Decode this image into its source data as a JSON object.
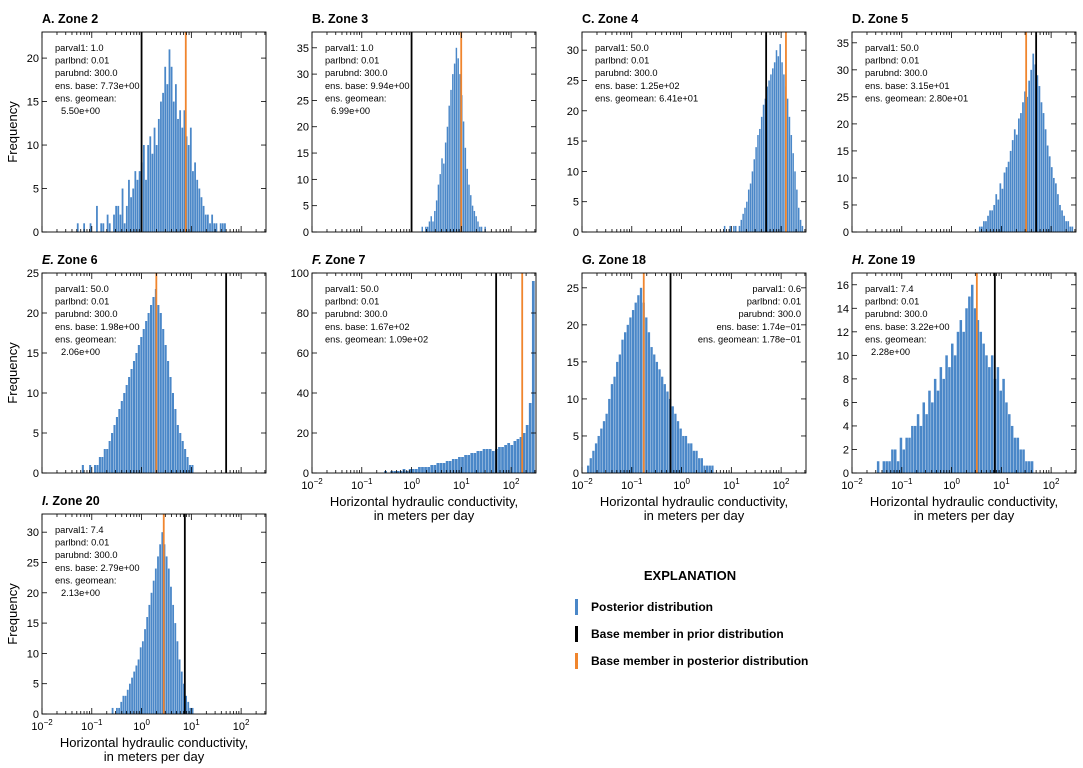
{
  "colors": {
    "posterior": "#4a87c8",
    "prior": "#000000",
    "post_base": "#f0852d"
  },
  "shared": {
    "ylabel": "Frequency",
    "xlabel_line1": "Horizontal hydraulic conductivity,",
    "xlabel_line2": "in meters per day",
    "xlim": [
      0.01,
      316
    ],
    "xticks": [
      {
        "v": 0.01,
        "b": "10",
        "e": "−2"
      },
      {
        "v": 0.1,
        "b": "10",
        "e": "−1"
      },
      {
        "v": 1,
        "b": "10",
        "e": "0"
      },
      {
        "v": 10,
        "b": "10",
        "e": "1"
      },
      {
        "v": 100,
        "b": "10",
        "e": "2"
      }
    ]
  },
  "legend": {
    "title": "EXPLANATION",
    "items": [
      {
        "label": "Posterior distribution",
        "color": "#4a87c8"
      },
      {
        "label": "Base member in prior distribution",
        "color": "#000000"
      },
      {
        "label": "Base member in posterior distribution",
        "color": "#f0852d"
      }
    ]
  },
  "chart_data": [
    {
      "type": "bar",
      "letter": "A.",
      "name": "Zone 2",
      "ylim": [
        0,
        23
      ],
      "yticks": [
        0,
        5,
        10,
        15,
        20
      ],
      "prior_base": 1.0,
      "post_base": 7.73,
      "ann_align": "left",
      "annotation": [
        "parval1: 1.0",
        "parlbnd: 0.01",
        "parubnd: 300.0",
        "ens. base: 7.73e+00",
        "ens. geomean:",
        "5.50e+00"
      ],
      "bins": {
        "min_log": -1.3,
        "max_log": 1.7,
        "counts": [
          1,
          0,
          0,
          1,
          0,
          0,
          1,
          0,
          0,
          3,
          0,
          1,
          1,
          0,
          2,
          1,
          0,
          2,
          3,
          3,
          2,
          5,
          1,
          3,
          6,
          4,
          5,
          7,
          6,
          7,
          8,
          10,
          6,
          10,
          11,
          9,
          12,
          10,
          13,
          15,
          16,
          19,
          17,
          21,
          19,
          15,
          17,
          13,
          14,
          12,
          14,
          11,
          10,
          12,
          7,
          8,
          6,
          5,
          4,
          3,
          2,
          2,
          1,
          2,
          1,
          1,
          0,
          1,
          1,
          1
        ]
      }
    },
    {
      "type": "bar",
      "letter": "B.",
      "name": "Zone 3",
      "ylim": [
        0,
        38
      ],
      "yticks": [
        0,
        5,
        10,
        15,
        20,
        25,
        30,
        35
      ],
      "prior_base": 1.0,
      "post_base": 9.94,
      "ann_align": "left",
      "annotation": [
        "parval1: 1.0",
        "parlbnd: 0.01",
        "parubnd: 300.0",
        "ens. base: 9.94e+00",
        "ens. geomean:",
        "6.99e+00"
      ],
      "bins": {
        "min_log": 0.2,
        "max_log": 1.5,
        "counts": [
          1,
          0,
          1,
          1,
          2,
          3,
          2,
          4,
          6,
          9,
          11,
          14,
          13,
          17,
          20,
          24,
          27,
          30,
          32,
          35,
          33,
          30,
          26,
          21,
          16,
          12,
          9,
          7,
          5,
          4,
          3,
          2,
          1,
          1,
          0,
          1
        ]
      }
    },
    {
      "type": "bar",
      "letter": "C.",
      "name": "Zone 4",
      "ylim": [
        0,
        33
      ],
      "yticks": [
        0,
        5,
        10,
        15,
        20,
        25,
        30
      ],
      "prior_base": 50.0,
      "post_base": 125,
      "ann_align": "left",
      "annotation": [
        "parval1: 50.0",
        "parlbnd: 0.01",
        "parubnd: 300.0",
        "ens. base: 1.25e+02",
        "ens. geomean: 6.41e+01"
      ],
      "bins": {
        "min_log": 0.85,
        "max_log": 2.45,
        "counts": [
          1,
          0,
          0,
          1,
          0,
          1,
          1,
          0,
          1,
          2,
          3,
          4,
          5,
          7,
          8,
          10,
          12,
          14,
          16,
          17,
          19,
          21,
          22,
          24,
          25,
          26,
          27,
          28,
          30,
          29,
          31,
          28,
          26,
          24,
          22,
          19,
          16,
          13,
          10,
          7,
          4,
          2,
          1
        ]
      }
    },
    {
      "type": "bar",
      "letter": "D.",
      "name": "Zone 5",
      "ylim": [
        0,
        37
      ],
      "yticks": [
        0,
        5,
        10,
        15,
        20,
        25,
        30,
        35
      ],
      "prior_base": 50.0,
      "post_base": 31.5,
      "ann_align": "left",
      "annotation": [
        "parval1: 50.0",
        "parlbnd: 0.01",
        "parubnd: 300.0",
        "ens. base: 3.15e+01",
        "ens. geomean: 2.80e+01"
      ],
      "bins": {
        "min_log": 0.55,
        "max_log": 2.45,
        "counts": [
          1,
          1,
          2,
          2,
          3,
          4,
          4,
          5,
          7,
          6,
          9,
          8,
          11,
          12,
          13,
          15,
          17,
          19,
          18,
          21,
          22,
          24,
          26,
          25,
          28,
          30,
          33,
          31,
          29,
          27,
          24,
          22,
          19,
          16,
          14,
          12,
          10,
          9,
          7,
          5,
          4,
          3,
          2,
          2,
          1,
          1
        ]
      }
    },
    {
      "type": "bar",
      "letter": "E.",
      "name": "Zone 6",
      "ylim": [
        0,
        25
      ],
      "yticks": [
        0,
        5,
        10,
        15,
        20,
        25
      ],
      "prior_base": 50.0,
      "post_base": 1.98,
      "ann_align": "left",
      "annotation": [
        "parval1: 50.0",
        "parlbnd: 0.01",
        "parubnd: 300.0",
        "ens. base: 1.98e+00",
        "ens. geomean:",
        "2.06e+00"
      ],
      "bins": {
        "min_log": -1.2,
        "max_log": 1.05,
        "counts": [
          1,
          0,
          0,
          1,
          0,
          1,
          1,
          2,
          2,
          3,
          3,
          4,
          5,
          6,
          7,
          8,
          9,
          10,
          11,
          12,
          13,
          14,
          15,
          16,
          17,
          18,
          19,
          20,
          21,
          22,
          23,
          21,
          20,
          18,
          16,
          14,
          12,
          10,
          8,
          6,
          5,
          4,
          3,
          2,
          1,
          1
        ]
      }
    },
    {
      "type": "bar",
      "letter": "F.",
      "name": "Zone 7",
      "ylim": [
        0,
        100
      ],
      "yticks": [
        0,
        20,
        40,
        60,
        80,
        100
      ],
      "prior_base": 50.0,
      "post_base": 167,
      "ann_align": "left",
      "annotation": [
        "parval1: 50.0",
        "parlbnd: 0.01",
        "parubnd: 300.0",
        "ens. base: 1.67e+02",
        "ens. geomean: 1.09e+02"
      ],
      "bins": {
        "min_log": -0.55,
        "max_log": 2.48,
        "counts": [
          1,
          0,
          1,
          1,
          1,
          1,
          2,
          1,
          2,
          2,
          2,
          3,
          3,
          3,
          3,
          4,
          4,
          5,
          5,
          5,
          6,
          6,
          7,
          7,
          8,
          8,
          9,
          9,
          10,
          10,
          11,
          11,
          12,
          12,
          12,
          11,
          12,
          13,
          13,
          14,
          15,
          14,
          16,
          17,
          18,
          20,
          24,
          35,
          96
        ]
      }
    },
    {
      "type": "bar",
      "letter": "G.",
      "name": "Zone 18",
      "ylim": [
        0,
        27
      ],
      "yticks": [
        0,
        5,
        10,
        15,
        20,
        25
      ],
      "prior_base": 0.6,
      "post_base": 0.174,
      "ann_align": "right",
      "annotation": [
        "parval1: 0.6",
        "parlbnd: 0.01",
        "parubnd: 300.0",
        "ens. base: 1.74e−01",
        "ens. geomean: 1.78e−01"
      ],
      "bins": {
        "min_log": -1.9,
        "max_log": 0.65,
        "counts": [
          1,
          2,
          3,
          4,
          5,
          6,
          7,
          8,
          10,
          12,
          13,
          15,
          16,
          18,
          19,
          20,
          21,
          22,
          23,
          24,
          25,
          23,
          21,
          19,
          17,
          16,
          15,
          14,
          13,
          12,
          11,
          10,
          9,
          8,
          7,
          6,
          5,
          5,
          4,
          4,
          3,
          3,
          2,
          2,
          1,
          1,
          1,
          1
        ]
      }
    },
    {
      "type": "bar",
      "letter": "H.",
      "name": "Zone 19",
      "ylim": [
        0,
        17
      ],
      "yticks": [
        0,
        2,
        4,
        6,
        8,
        10,
        12,
        14,
        16
      ],
      "prior_base": 7.4,
      "post_base": 3.22,
      "ann_align": "left",
      "annotation": [
        "parval1: 7.4",
        "parlbnd: 0.01",
        "parubnd: 300.0",
        "ens. base: 3.22e+00",
        "ens. geomean:",
        "2.28e+00"
      ],
      "bins": {
        "min_log": -1.5,
        "max_log": 1.65,
        "counts": [
          1,
          0,
          1,
          1,
          1,
          2,
          2,
          1,
          3,
          2,
          3,
          3,
          4,
          4,
          5,
          4,
          6,
          5,
          7,
          6,
          8,
          7,
          9,
          8,
          10,
          9,
          11,
          10,
          12,
          13,
          12,
          14,
          15,
          16,
          14,
          13,
          12,
          11,
          10,
          9,
          10,
          8,
          9,
          7,
          8,
          6,
          5,
          4,
          3,
          3,
          2,
          2,
          1,
          1,
          1
        ]
      }
    },
    {
      "type": "bar",
      "letter": "I.",
      "name": "Zone 20",
      "ylim": [
        0,
        33
      ],
      "yticks": [
        0,
        5,
        10,
        15,
        20,
        25,
        30
      ],
      "prior_base": 7.4,
      "post_base": 2.79,
      "ann_align": "left",
      "annotation": [
        "parval1: 7.4",
        "parlbnd: 0.01",
        "parubnd: 300.0",
        "ens. base: 2.79e+00",
        "ens. geomean:",
        "2.13e+00"
      ],
      "bins": {
        "min_log": -0.6,
        "max_log": 1.05,
        "counts": [
          1,
          0,
          1,
          1,
          2,
          3,
          3,
          4,
          5,
          6,
          7,
          8,
          9,
          11,
          12,
          14,
          16,
          18,
          20,
          22,
          24,
          26,
          28,
          30,
          28,
          26,
          24,
          21,
          18,
          15,
          12,
          9,
          7,
          5,
          3,
          2,
          1,
          1
        ]
      }
    }
  ]
}
